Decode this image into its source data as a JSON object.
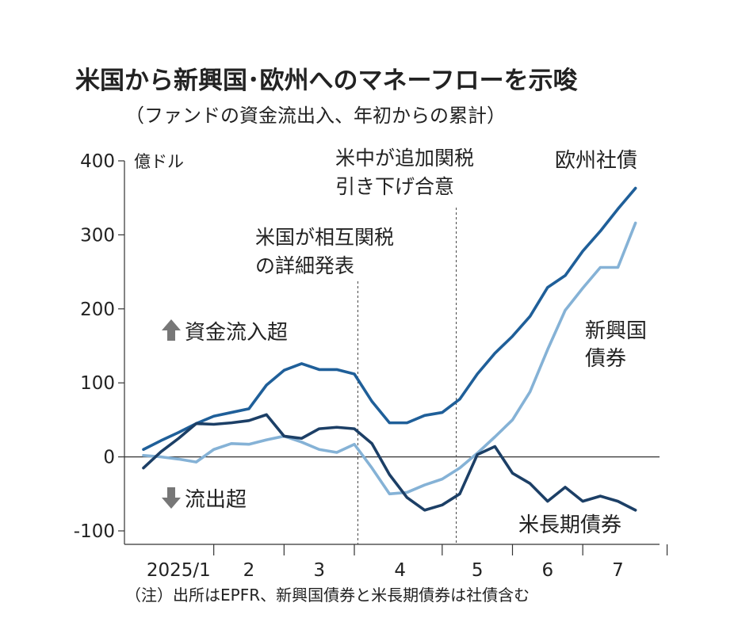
{
  "chart_data": {
    "type": "line",
    "title": "米国から新興国･欧州へのマネーフローを示唆",
    "subtitle": "（ファンドの資金流出入、年初からの累計）",
    "ylabel": "億ドル",
    "ylim": [
      -100,
      400
    ],
    "yticks": [
      -100,
      0,
      100,
      200,
      300,
      400
    ],
    "x_domain": [
      0,
      30
    ],
    "x_ticks": [
      {
        "label": "2025/1",
        "x": 2
      },
      {
        "label": "2",
        "x": 6
      },
      {
        "label": "3",
        "x": 10
      },
      {
        "label": "4",
        "x": 14.6
      },
      {
        "label": "5",
        "x": 19
      },
      {
        "label": "6",
        "x": 23
      },
      {
        "label": "7",
        "x": 27
      }
    ],
    "x_separators": [
      4,
      8,
      12,
      17,
      21,
      25,
      29.8
    ],
    "grid": false,
    "x": [
      0,
      1,
      2,
      3,
      4,
      5,
      6,
      7,
      8,
      9,
      10,
      11,
      12,
      13,
      14,
      15,
      16,
      17,
      18,
      19,
      20,
      21,
      22,
      23,
      24,
      25,
      26,
      27,
      28,
      29
    ],
    "series": [
      {
        "name": "欧州社債",
        "color": "#1f5f99",
        "values": [
          10,
          22,
          33,
          45,
          55,
          60,
          65,
          97,
          117,
          126,
          118,
          118,
          112,
          75,
          46,
          46,
          56,
          60,
          78,
          112,
          140,
          163,
          190,
          229,
          245,
          278,
          305,
          335,
          363,
          363
        ]
      },
      {
        "name": "新興国債券",
        "color": "#85b2d6",
        "values": [
          2,
          0,
          -3,
          -7,
          10,
          18,
          17,
          23,
          28,
          20,
          10,
          6,
          17,
          -15,
          -50,
          -48,
          -38,
          -30,
          -15,
          5,
          27,
          50,
          88,
          145,
          198,
          228,
          256,
          256,
          316,
          316
        ]
      },
      {
        "name": "米長期債券",
        "color": "#1c3f66",
        "values": [
          -15,
          7,
          25,
          45,
          44,
          46,
          49,
          57,
          28,
          25,
          38,
          40,
          38,
          18,
          -24,
          -55,
          -72,
          -65,
          -50,
          3,
          14,
          -22,
          -36,
          -60,
          -41,
          -60,
          -53,
          -60,
          -72,
          -72
        ]
      }
    ],
    "annotations": [
      {
        "text": "米国が相互関税",
        "text2": "の詳細発表",
        "x": 12.2
      },
      {
        "text": "米中が追加関税",
        "text2": "引き下げ合意",
        "x": 17.8
      }
    ],
    "arrow_labels": {
      "up": "資金流入超",
      "down": "流出超"
    },
    "series_labels": {
      "europe": "欧州社債",
      "emerging_line1": "新興国",
      "emerging_line2": "債券",
      "us": "米長期債券"
    },
    "note": "（注）出所はEPFR、新興国債券と米長期債券は社債含む"
  }
}
